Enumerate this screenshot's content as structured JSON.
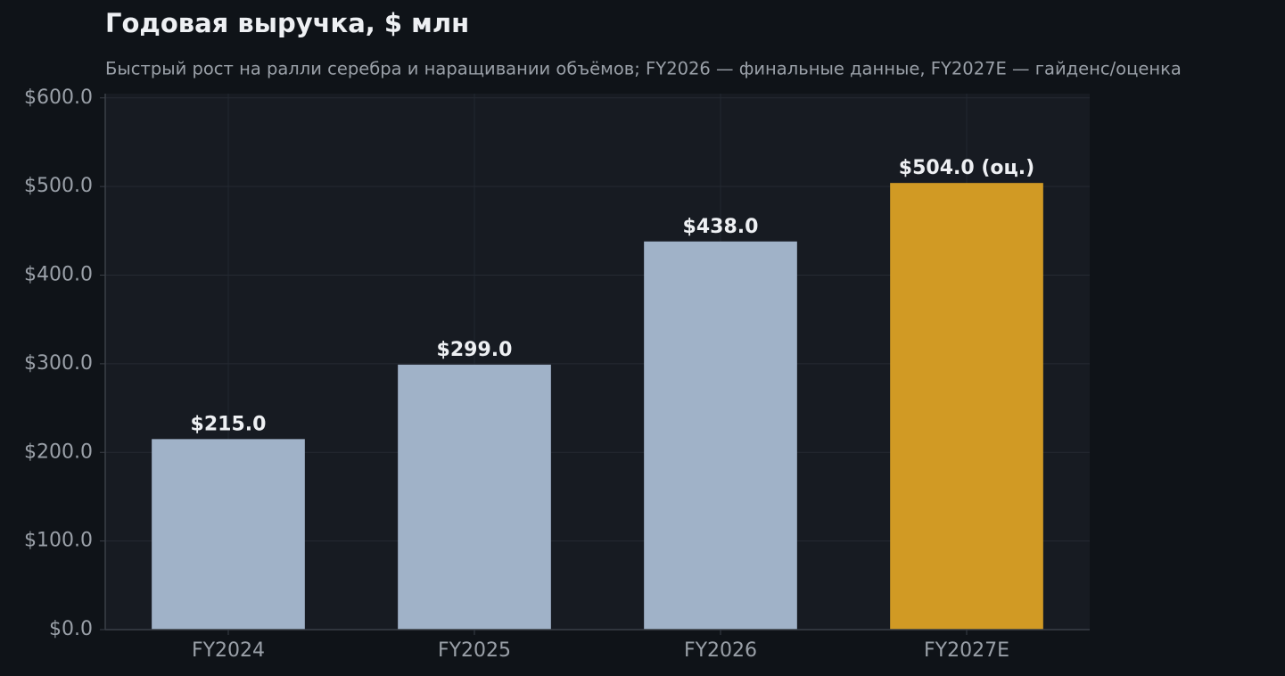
{
  "chart_data": {
    "type": "bar",
    "title": "Годовая выручка, $ млн",
    "subtitle": "Быстрый рост на ралли серебра и наращивании объёмов; FY2026 — финальные данные, FY2027E — гайденс/оценка",
    "categories": [
      "FY2024",
      "FY2025",
      "FY2026",
      "FY2027E"
    ],
    "values": [
      215.0,
      299.0,
      438.0,
      504.0
    ],
    "value_labels": [
      "$215.0",
      "$299.0",
      "$438.0",
      "$504.0 (оц.)"
    ],
    "colors": [
      "#a0b2c8",
      "#a0b2c8",
      "#a0b2c8",
      "#d19a24"
    ],
    "ylim": [
      0,
      604.8
    ],
    "yticks": [
      {
        "value": 0,
        "label": "$0.0"
      },
      {
        "value": 100,
        "label": "$100.0"
      },
      {
        "value": 200,
        "label": "$200.0"
      },
      {
        "value": 300,
        "label": "$300.0"
      },
      {
        "value": 400,
        "label": "$400.0"
      },
      {
        "value": 500,
        "label": "$500.0"
      },
      {
        "value": 600,
        "label": "$600.0"
      }
    ],
    "grid": true
  }
}
